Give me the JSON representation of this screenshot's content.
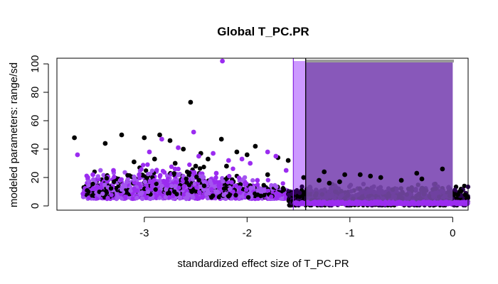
{
  "chart_data": {
    "type": "scatter",
    "title": "Global T_PC.PR",
    "xlabel": "standardized effect size of T_PC.PR",
    "ylabel": "modeled parameters: range/sd",
    "xlim": [
      -3.85,
      0.15
    ],
    "ylim": [
      -3,
      104
    ],
    "x_ticks": [
      -3,
      -2,
      -1,
      0
    ],
    "y_ticks": [
      0,
      20,
      40,
      60,
      80,
      100
    ],
    "grid": false,
    "legend": "none",
    "colors": {
      "black_series": "#000000",
      "purple_series": "#9b2cf0",
      "light_purple_series": "#a455f0",
      "dark_overlap": "#2a0050",
      "light_band": "#cc99ff",
      "dark_band": "#7b4cae",
      "gray_bar": "#9a9a9a",
      "purple_line": "#8a2be2",
      "black_line": "#000000"
    },
    "vertical_lines": [
      {
        "x": -1.55,
        "color": "#8a2be2"
      },
      {
        "x": -1.43,
        "color": "#000000"
      }
    ],
    "shaded_regions": [
      {
        "xmin": -1.55,
        "xmax": 0.0,
        "ymin": 0,
        "ymax": 102,
        "color": "#cc99ff"
      },
      {
        "xmin": -1.43,
        "xmax": 0.0,
        "ymin": 0,
        "ymax": 102,
        "color": "#7b4cae"
      }
    ],
    "series": [
      {
        "color": "black",
        "x": [
          -3.68,
          -3.38,
          -3.22,
          -3.0,
          -2.85,
          -2.75,
          -2.55,
          -2.62,
          -2.45,
          -2.38,
          -2.25,
          -2.1,
          -2.0,
          -1.92,
          -1.7,
          -1.6,
          -2.9,
          -2.7,
          -3.1,
          -2.5,
          -2.2,
          -1.8,
          -1.45,
          -1.3,
          -1.1,
          -0.9,
          -0.7,
          -0.5,
          -0.3,
          -0.1,
          0.05,
          -1.2,
          -0.8,
          -0.35,
          -1.05,
          -1.25
        ],
        "y": [
          48,
          44,
          50,
          48,
          50,
          46,
          73,
          40,
          37,
          33,
          47,
          38,
          36,
          42,
          34,
          32,
          33,
          30,
          31,
          28,
          28,
          22,
          20,
          18,
          17,
          22,
          20,
          18,
          19,
          26,
          8,
          16,
          21,
          23,
          22,
          24
        ]
      },
      {
        "color": "purple",
        "x": [
          -3.65,
          -3.5,
          -3.3,
          -3.05,
          -2.95,
          -2.83,
          -2.67,
          -2.52,
          -2.47,
          -2.33,
          -2.24,
          -2.18,
          -2.05,
          -1.97,
          -1.8,
          -1.72,
          -1.62,
          -3.55,
          -2.7,
          -2.3,
          -1.9
        ],
        "y": [
          36,
          22,
          25,
          22,
          38,
          47,
          41,
          52,
          35,
          37,
          102,
          32,
          33,
          30,
          38,
          35,
          25,
          20,
          26,
          23,
          18
        ]
      }
    ]
  }
}
